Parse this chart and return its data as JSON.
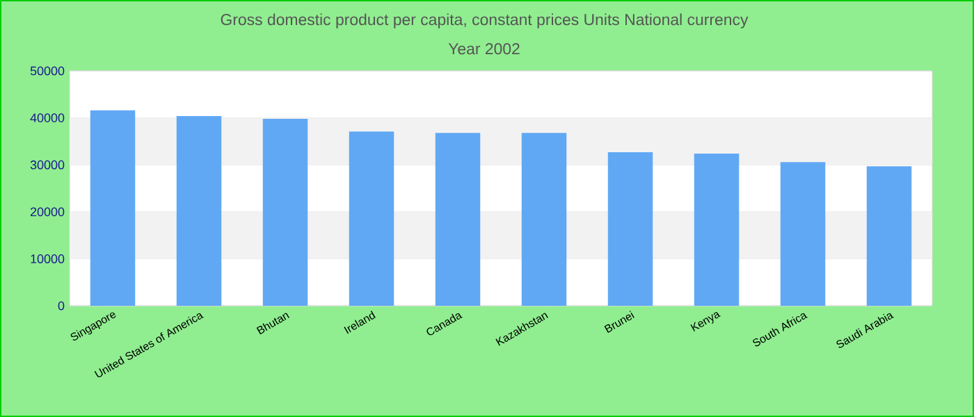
{
  "chart_data": {
    "type": "bar",
    "title": "Gross domestic product per capita, constant prices Units National currency",
    "subtitle": "Year 2002",
    "categories": [
      "Singapore",
      "United States of America",
      "Bhutan",
      "Ireland",
      "Canada",
      "Kazakhstan",
      "Brunei",
      "Kenya",
      "South Africa",
      "Saudi Arabia"
    ],
    "values": [
      41600,
      40400,
      39800,
      37100,
      36800,
      36800,
      32700,
      32400,
      30600,
      29700
    ],
    "color": "#61a8f4",
    "ylim": [
      0,
      50000
    ],
    "yticks": [
      0,
      10000,
      20000,
      30000,
      40000,
      50000
    ],
    "grid": "y"
  }
}
